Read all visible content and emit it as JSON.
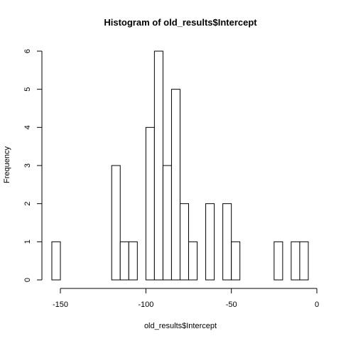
{
  "chart_data": {
    "type": "bar",
    "title": "Histogram of old_results$Intercept",
    "xlabel": "old_results$Intercept",
    "ylabel": "Frequency",
    "bin_width": 5,
    "bins": [
      {
        "start": -155,
        "end": -150,
        "count": 1
      },
      {
        "start": -150,
        "end": -145,
        "count": 0
      },
      {
        "start": -145,
        "end": -140,
        "count": 0
      },
      {
        "start": -140,
        "end": -135,
        "count": 0
      },
      {
        "start": -135,
        "end": -130,
        "count": 0
      },
      {
        "start": -130,
        "end": -125,
        "count": 0
      },
      {
        "start": -125,
        "end": -120,
        "count": 0
      },
      {
        "start": -120,
        "end": -115,
        "count": 3
      },
      {
        "start": -115,
        "end": -110,
        "count": 1
      },
      {
        "start": -110,
        "end": -105,
        "count": 1
      },
      {
        "start": -105,
        "end": -100,
        "count": 0
      },
      {
        "start": -100,
        "end": -95,
        "count": 4
      },
      {
        "start": -95,
        "end": -90,
        "count": 6
      },
      {
        "start": -90,
        "end": -85,
        "count": 3
      },
      {
        "start": -85,
        "end": -80,
        "count": 5
      },
      {
        "start": -80,
        "end": -75,
        "count": 2
      },
      {
        "start": -75,
        "end": -70,
        "count": 1
      },
      {
        "start": -70,
        "end": -65,
        "count": 0
      },
      {
        "start": -65,
        "end": -60,
        "count": 2
      },
      {
        "start": -60,
        "end": -55,
        "count": 0
      },
      {
        "start": -55,
        "end": -50,
        "count": 2
      },
      {
        "start": -50,
        "end": -45,
        "count": 1
      },
      {
        "start": -45,
        "end": -40,
        "count": 0
      },
      {
        "start": -40,
        "end": -35,
        "count": 0
      },
      {
        "start": -35,
        "end": -30,
        "count": 0
      },
      {
        "start": -30,
        "end": -25,
        "count": 0
      },
      {
        "start": -25,
        "end": -20,
        "count": 1
      },
      {
        "start": -20,
        "end": -15,
        "count": 0
      },
      {
        "start": -15,
        "end": -10,
        "count": 1
      },
      {
        "start": -10,
        "end": -5,
        "count": 1
      }
    ],
    "xlim": [
      -155,
      -5
    ],
    "ylim": [
      0,
      6
    ],
    "xticks": [
      -150,
      -100,
      -50,
      0
    ],
    "yticks": [
      0,
      1,
      2,
      3,
      4,
      5,
      6
    ],
    "xtick_labels": [
      "-150",
      "-100",
      "-50",
      "0"
    ],
    "ytick_labels": [
      "0",
      "1",
      "2",
      "3",
      "4",
      "5",
      "6"
    ],
    "grid": false,
    "bar_fill": "#ffffff",
    "bar_stroke": "#000000"
  }
}
